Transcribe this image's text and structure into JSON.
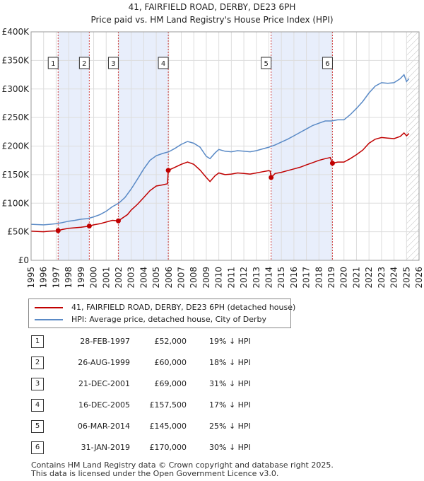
{
  "chart_data": {
    "type": "line",
    "title": "41, FAIRFIELD ROAD, DERBY, DE23 6PH",
    "subtitle": "Price paid vs. HM Land Registry's House Price Index (HPI)",
    "xlim": [
      1995,
      2026
    ],
    "ylim": [
      0,
      400000
    ],
    "x_ticks": [
      "1995",
      "1996",
      "1997",
      "1998",
      "1999",
      "2000",
      "2001",
      "2002",
      "2003",
      "2004",
      "2005",
      "2006",
      "2007",
      "2008",
      "2009",
      "2010",
      "2011",
      "2012",
      "2013",
      "2014",
      "2015",
      "2016",
      "2017",
      "2018",
      "2019",
      "2020",
      "2021",
      "2022",
      "2023",
      "2024",
      "2025",
      "2026"
    ],
    "y_ticks": [
      {
        "value": 0,
        "label": "£0"
      },
      {
        "value": 50000,
        "label": "£50K"
      },
      {
        "value": 100000,
        "label": "£100K"
      },
      {
        "value": 150000,
        "label": "£150K"
      },
      {
        "value": 200000,
        "label": "£200K"
      },
      {
        "value": 250000,
        "label": "£250K"
      },
      {
        "value": 300000,
        "label": "£300K"
      },
      {
        "value": 350000,
        "label": "£350K"
      },
      {
        "value": 400000,
        "label": "£400K"
      }
    ],
    "shaded_periods": [
      [
        1997.16,
        1999.65
      ],
      [
        2001.97,
        2005.96
      ],
      [
        2014.18,
        2019.08
      ]
    ],
    "future_hatch_start": 2025.0,
    "series": [
      {
        "name": "41, FAIRFIELD ROAD, DERBY, DE23 6PH (detached house)",
        "color": "#c00000",
        "points": [
          [
            1995.0,
            51000
          ],
          [
            1995.5,
            50500
          ],
          [
            1996.0,
            50000
          ],
          [
            1996.5,
            51000
          ],
          [
            1997.0,
            51500
          ],
          [
            1997.16,
            52000
          ],
          [
            1997.5,
            54000
          ],
          [
            1998.0,
            56000
          ],
          [
            1998.5,
            57000
          ],
          [
            1999.0,
            58000
          ],
          [
            1999.65,
            60000
          ],
          [
            2000.0,
            62000
          ],
          [
            2000.5,
            64000
          ],
          [
            2001.0,
            67000
          ],
          [
            2001.5,
            70000
          ],
          [
            2001.97,
            69000
          ],
          [
            2002.3,
            74000
          ],
          [
            2002.7,
            80000
          ],
          [
            2003.0,
            88000
          ],
          [
            2003.5,
            98000
          ],
          [
            2004.0,
            110000
          ],
          [
            2004.5,
            122000
          ],
          [
            2005.0,
            130000
          ],
          [
            2005.5,
            132000
          ],
          [
            2005.9,
            134000
          ],
          [
            2005.96,
            157500
          ],
          [
            2006.5,
            163000
          ],
          [
            2007.0,
            168000
          ],
          [
            2007.5,
            172000
          ],
          [
            2008.0,
            168000
          ],
          [
            2008.5,
            158000
          ],
          [
            2009.0,
            145000
          ],
          [
            2009.3,
            138000
          ],
          [
            2009.7,
            148000
          ],
          [
            2010.0,
            153000
          ],
          [
            2010.5,
            150000
          ],
          [
            2011.0,
            151000
          ],
          [
            2011.5,
            153000
          ],
          [
            2012.0,
            152000
          ],
          [
            2012.5,
            151000
          ],
          [
            2013.0,
            153000
          ],
          [
            2013.5,
            155000
          ],
          [
            2014.0,
            157000
          ],
          [
            2014.1,
            156000
          ],
          [
            2014.18,
            145000
          ],
          [
            2014.5,
            152000
          ],
          [
            2015.0,
            154000
          ],
          [
            2015.5,
            157000
          ],
          [
            2016.0,
            160000
          ],
          [
            2016.5,
            163000
          ],
          [
            2017.0,
            167000
          ],
          [
            2017.5,
            171000
          ],
          [
            2018.0,
            175000
          ],
          [
            2018.5,
            178000
          ],
          [
            2018.9,
            180000
          ],
          [
            2019.08,
            170000
          ],
          [
            2019.5,
            172000
          ],
          [
            2020.0,
            172000
          ],
          [
            2020.5,
            178000
          ],
          [
            2021.0,
            185000
          ],
          [
            2021.5,
            193000
          ],
          [
            2022.0,
            205000
          ],
          [
            2022.5,
            212000
          ],
          [
            2023.0,
            215000
          ],
          [
            2023.5,
            214000
          ],
          [
            2024.0,
            213000
          ],
          [
            2024.5,
            217000
          ],
          [
            2024.8,
            223000
          ],
          [
            2025.0,
            218000
          ],
          [
            2025.2,
            222000
          ]
        ]
      },
      {
        "name": "HPI: Average price, detached house, City of Derby",
        "color": "#5a8ac6",
        "points": [
          [
            1995.0,
            63000
          ],
          [
            1995.5,
            62500
          ],
          [
            1996.0,
            62000
          ],
          [
            1996.5,
            63000
          ],
          [
            1997.0,
            64000
          ],
          [
            1997.5,
            66000
          ],
          [
            1998.0,
            68500
          ],
          [
            1998.5,
            70000
          ],
          [
            1999.0,
            72000
          ],
          [
            1999.5,
            73000
          ],
          [
            2000.0,
            76000
          ],
          [
            2000.5,
            80000
          ],
          [
            2001.0,
            86000
          ],
          [
            2001.5,
            94000
          ],
          [
            2002.0,
            100000
          ],
          [
            2002.5,
            110000
          ],
          [
            2003.0,
            125000
          ],
          [
            2003.5,
            142000
          ],
          [
            2004.0,
            160000
          ],
          [
            2004.5,
            175000
          ],
          [
            2005.0,
            183000
          ],
          [
            2005.5,
            187000
          ],
          [
            2006.0,
            190000
          ],
          [
            2006.5,
            196000
          ],
          [
            2007.0,
            203000
          ],
          [
            2007.5,
            208000
          ],
          [
            2008.0,
            205000
          ],
          [
            2008.5,
            198000
          ],
          [
            2009.0,
            182000
          ],
          [
            2009.3,
            178000
          ],
          [
            2009.7,
            188000
          ],
          [
            2010.0,
            194000
          ],
          [
            2010.5,
            191000
          ],
          [
            2011.0,
            190000
          ],
          [
            2011.5,
            192000
          ],
          [
            2012.0,
            191000
          ],
          [
            2012.5,
            190000
          ],
          [
            2013.0,
            192000
          ],
          [
            2013.5,
            195000
          ],
          [
            2014.0,
            198000
          ],
          [
            2014.5,
            202000
          ],
          [
            2015.0,
            207000
          ],
          [
            2015.5,
            212000
          ],
          [
            2016.0,
            218000
          ],
          [
            2016.5,
            224000
          ],
          [
            2017.0,
            230000
          ],
          [
            2017.5,
            236000
          ],
          [
            2018.0,
            240000
          ],
          [
            2018.5,
            244000
          ],
          [
            2019.0,
            244000
          ],
          [
            2019.5,
            246000
          ],
          [
            2020.0,
            246000
          ],
          [
            2020.5,
            255000
          ],
          [
            2021.0,
            266000
          ],
          [
            2021.5,
            278000
          ],
          [
            2022.0,
            293000
          ],
          [
            2022.5,
            305000
          ],
          [
            2023.0,
            311000
          ],
          [
            2023.5,
            310000
          ],
          [
            2024.0,
            311000
          ],
          [
            2024.5,
            318000
          ],
          [
            2024.8,
            325000
          ],
          [
            2025.0,
            313000
          ],
          [
            2025.2,
            318000
          ]
        ]
      }
    ],
    "sales": [
      {
        "n": "1",
        "x": 1997.16,
        "y": 52000
      },
      {
        "n": "2",
        "x": 1999.65,
        "y": 60000
      },
      {
        "n": "3",
        "x": 2001.97,
        "y": 69000
      },
      {
        "n": "4",
        "x": 2005.96,
        "y": 157500
      },
      {
        "n": "5",
        "x": 2014.18,
        "y": 145000
      },
      {
        "n": "6",
        "x": 2019.08,
        "y": 170000
      }
    ]
  },
  "legend": {
    "property_label": "41, FAIRFIELD ROAD, DERBY, DE23 6PH (detached house)",
    "hpi_label": "HPI: Average price, detached house, City of Derby"
  },
  "transactions": [
    {
      "n": "1",
      "date": "28-FEB-1997",
      "price": "£52,000",
      "hpi": "19% ↓ HPI"
    },
    {
      "n": "2",
      "date": "26-AUG-1999",
      "price": "£60,000",
      "hpi": "18% ↓ HPI"
    },
    {
      "n": "3",
      "date": "21-DEC-2001",
      "price": "£69,000",
      "hpi": "31% ↓ HPI"
    },
    {
      "n": "4",
      "date": "16-DEC-2005",
      "price": "£157,500",
      "hpi": "17% ↓ HPI"
    },
    {
      "n": "5",
      "date": "06-MAR-2014",
      "price": "£145,000",
      "hpi": "25% ↓ HPI"
    },
    {
      "n": "6",
      "date": "31-JAN-2019",
      "price": "£170,000",
      "hpi": "30% ↓ HPI"
    }
  ],
  "footer": {
    "line1": "Contains HM Land Registry data © Crown copyright and database right 2025.",
    "line2": "This data is licensed under the Open Government Licence v3.0."
  },
  "colors": {
    "property": "#c00000",
    "hpi": "#5a8ac6",
    "shade": "#e8eefb",
    "grid": "#dddddd"
  }
}
